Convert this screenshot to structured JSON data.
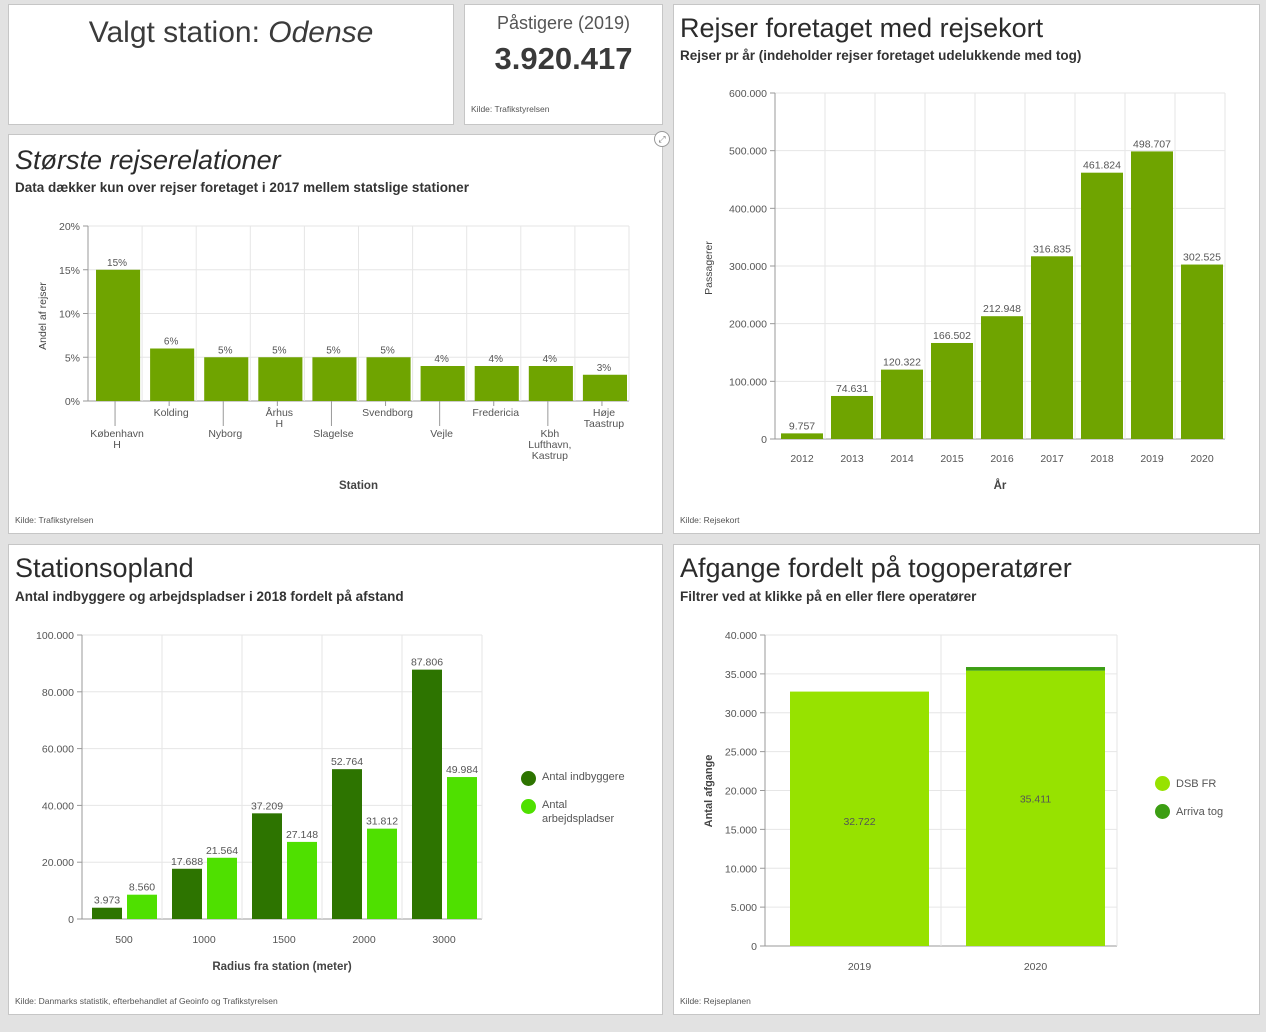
{
  "station": {
    "prefix": "Valgt station: ",
    "name": "Odense"
  },
  "boardings": {
    "label": "Påstigere (2019)",
    "value": "3.920.417",
    "source": "Kilde: Trafikstyrelsen"
  },
  "relations": {
    "title": "Største rejserelationer",
    "subtitle": "Data dækker kun over rejser foretaget i 2017 mellem statslige stationer",
    "source": "Kilde: Trafikstyrelsen",
    "expand_icon": "expand-icon"
  },
  "journeys": {
    "title": "Rejser foretaget med rejsekort",
    "subtitle": "Rejser pr år (indeholder rejser foretaget udelukkende med tog)",
    "source": "Kilde: Rejsekort"
  },
  "catchment": {
    "title": "Stationsopland",
    "subtitle": "Antal indbyggere og arbejdspladser i 2018 fordelt på afstand",
    "source": "Kilde: Danmarks statistik, efterbehandlet af Geoinfo og Trafikstyrelsen"
  },
  "departures": {
    "title": "Afgange fordelt på togoperatører",
    "subtitle": "Filtrer ved at klikke på en eller flere operatører",
    "source": "Kilde: Rejseplanen"
  },
  "colors": {
    "bar_green": "#6fa400",
    "dark_green": "#2d7400",
    "light_green": "#4fe000",
    "lime": "#97e200",
    "arriva": "#3c9e13"
  },
  "chart_data": [
    {
      "id": "relations",
      "type": "bar",
      "title": "Største rejserelationer",
      "xlabel": "Station",
      "ylabel": "Andel af rejser",
      "ylim": [
        0,
        20
      ],
      "yticks": [
        "0%",
        "5%",
        "10%",
        "15%",
        "20%"
      ],
      "categories": [
        [
          "København",
          "H"
        ],
        [
          "Kolding"
        ],
        [
          "Nyborg"
        ],
        [
          "Århus",
          "H"
        ],
        [
          "Slagelse"
        ],
        [
          "Svendborg"
        ],
        [
          "Vejle"
        ],
        [
          "Fredericia"
        ],
        [
          "Kbh",
          "Lufthavn,",
          "Kastrup"
        ],
        [
          "Høje",
          "Taastrup"
        ]
      ],
      "values": [
        15,
        6,
        5,
        5,
        5,
        5,
        4,
        4,
        4,
        3
      ],
      "labels": [
        "15%",
        "6%",
        "5%",
        "5%",
        "5%",
        "5%",
        "4%",
        "4%",
        "4%",
        "3%"
      ]
    },
    {
      "id": "journeys",
      "type": "bar",
      "title": "Rejser foretaget med rejsekort",
      "xlabel": "År",
      "ylabel": "Passagerer",
      "ylim": [
        0,
        600000
      ],
      "yticks": [
        "0",
        "100.000",
        "200.000",
        "300.000",
        "400.000",
        "500.000",
        "600.000"
      ],
      "categories": [
        "2012",
        "2013",
        "2014",
        "2015",
        "2016",
        "2017",
        "2018",
        "2019",
        "2020"
      ],
      "values": [
        9757,
        74631,
        120322,
        166502,
        212948,
        316835,
        461824,
        498707,
        302525
      ],
      "labels": [
        "9.757",
        "74.631",
        "120.322",
        "166.502",
        "212.948",
        "316.835",
        "461.824",
        "498.707",
        "302.525"
      ]
    },
    {
      "id": "catchment",
      "type": "bar",
      "title": "Stationsopland",
      "xlabel": "Radius fra station (meter)",
      "ylabel": "",
      "ylim": [
        0,
        100000
      ],
      "yticks": [
        "0",
        "20.000",
        "40.000",
        "60.000",
        "80.000",
        "100.000"
      ],
      "categories": [
        "500",
        "1000",
        "1500",
        "2000",
        "3000"
      ],
      "series": [
        {
          "name": "Antal indbyggere",
          "values": [
            3973,
            17688,
            37209,
            52764,
            87806
          ],
          "labels": [
            "3.973",
            "17.688",
            "37.209",
            "52.764",
            "87.806"
          ]
        },
        {
          "name": "Antal arbejdspladser",
          "values": [
            8560,
            21564,
            27148,
            31812,
            49984
          ],
          "labels": [
            "8.560",
            "21.564",
            "27.148",
            "31.812",
            "49.984"
          ]
        }
      ],
      "legend": [
        [
          "Antal indbyggere"
        ],
        [
          "Antal",
          "arbejdspladser"
        ]
      ]
    },
    {
      "id": "departures",
      "type": "bar",
      "stacked": true,
      "title": "Afgange fordelt på togoperatører",
      "xlabel": "",
      "ylabel": "Antal afgange",
      "ylim": [
        0,
        40000
      ],
      "yticks": [
        "0",
        "5.000",
        "10.000",
        "15.000",
        "20.000",
        "25.000",
        "30.000",
        "35.000",
        "40.000"
      ],
      "categories": [
        "2019",
        "2020"
      ],
      "series": [
        {
          "name": "DSB FR",
          "values": [
            32722,
            35411
          ],
          "labels": [
            "32.722",
            "35.411"
          ]
        },
        {
          "name": "Arriva tog",
          "values": [
            0,
            470
          ]
        }
      ]
    }
  ]
}
